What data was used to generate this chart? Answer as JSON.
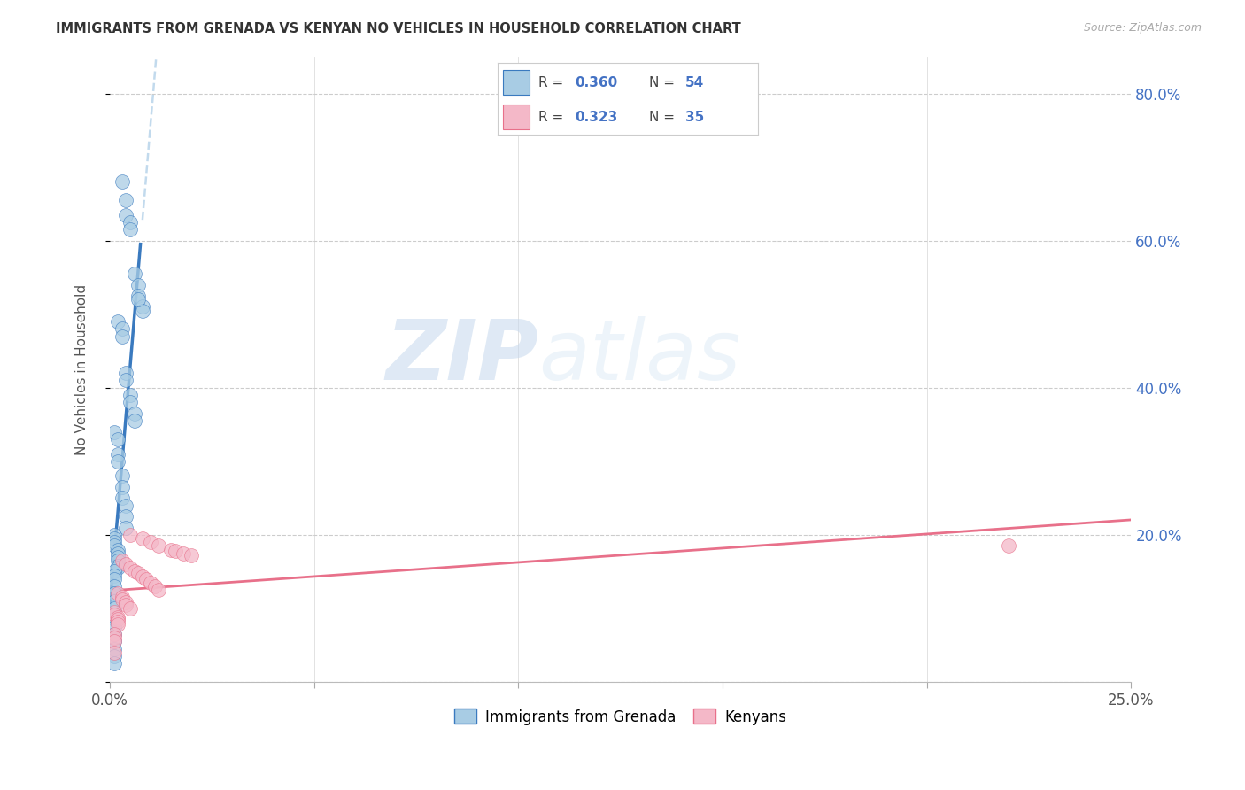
{
  "title": "IMMIGRANTS FROM GRENADA VS KENYAN NO VEHICLES IN HOUSEHOLD CORRELATION CHART",
  "source": "Source: ZipAtlas.com",
  "ylabel": "No Vehicles in Household",
  "legend_label1": "Immigrants from Grenada",
  "legend_label2": "Kenyans",
  "watermark_zip": "ZIP",
  "watermark_atlas": "atlas",
  "xlim": [
    0.0,
    0.25
  ],
  "ylim": [
    0.0,
    0.85
  ],
  "yticks": [
    0.0,
    0.2,
    0.4,
    0.6,
    0.8
  ],
  "ytick_labels": [
    "",
    "20.0%",
    "40.0%",
    "60.0%",
    "80.0%"
  ],
  "xticks": [
    0.0,
    0.05,
    0.1,
    0.15,
    0.2,
    0.25
  ],
  "color_blue": "#a8cce4",
  "color_pink": "#f4b8c8",
  "color_blue_line": "#3a7abf",
  "color_pink_line": "#e8708a",
  "color_dashed": "#b8d4ea",
  "color_ytick": "#4472c4",
  "grenada_x": [
    0.003,
    0.004,
    0.004,
    0.005,
    0.005,
    0.006,
    0.007,
    0.007,
    0.008,
    0.008,
    0.002,
    0.003,
    0.003,
    0.004,
    0.004,
    0.005,
    0.005,
    0.006,
    0.006,
    0.007,
    0.001,
    0.002,
    0.002,
    0.002,
    0.003,
    0.003,
    0.003,
    0.004,
    0.004,
    0.004,
    0.001,
    0.001,
    0.001,
    0.001,
    0.002,
    0.002,
    0.002,
    0.002,
    0.002,
    0.002,
    0.001,
    0.001,
    0.001,
    0.001,
    0.001,
    0.001,
    0.001,
    0.001,
    0.001,
    0.001,
    0.001,
    0.001,
    0.001,
    0.001
  ],
  "grenada_y": [
    0.68,
    0.655,
    0.635,
    0.625,
    0.615,
    0.555,
    0.54,
    0.525,
    0.51,
    0.505,
    0.49,
    0.48,
    0.47,
    0.42,
    0.41,
    0.39,
    0.38,
    0.365,
    0.355,
    0.52,
    0.34,
    0.33,
    0.31,
    0.3,
    0.28,
    0.265,
    0.25,
    0.24,
    0.225,
    0.21,
    0.2,
    0.195,
    0.19,
    0.185,
    0.18,
    0.175,
    0.17,
    0.165,
    0.158,
    0.155,
    0.15,
    0.145,
    0.14,
    0.13,
    0.12,
    0.11,
    0.1,
    0.085,
    0.075,
    0.065,
    0.055,
    0.045,
    0.035,
    0.025
  ],
  "kenyan_x": [
    0.005,
    0.008,
    0.01,
    0.012,
    0.015,
    0.016,
    0.018,
    0.02,
    0.003,
    0.004,
    0.005,
    0.006,
    0.007,
    0.008,
    0.009,
    0.01,
    0.011,
    0.012,
    0.002,
    0.003,
    0.003,
    0.004,
    0.004,
    0.005,
    0.001,
    0.001,
    0.002,
    0.002,
    0.002,
    0.002,
    0.001,
    0.001,
    0.001,
    0.22,
    0.001
  ],
  "kenyan_y": [
    0.2,
    0.195,
    0.19,
    0.185,
    0.18,
    0.178,
    0.175,
    0.172,
    0.165,
    0.16,
    0.155,
    0.15,
    0.148,
    0.143,
    0.14,
    0.135,
    0.13,
    0.125,
    0.12,
    0.115,
    0.112,
    0.108,
    0.105,
    0.1,
    0.095,
    0.092,
    0.088,
    0.085,
    0.082,
    0.078,
    0.065,
    0.06,
    0.055,
    0.185,
    0.04
  ]
}
